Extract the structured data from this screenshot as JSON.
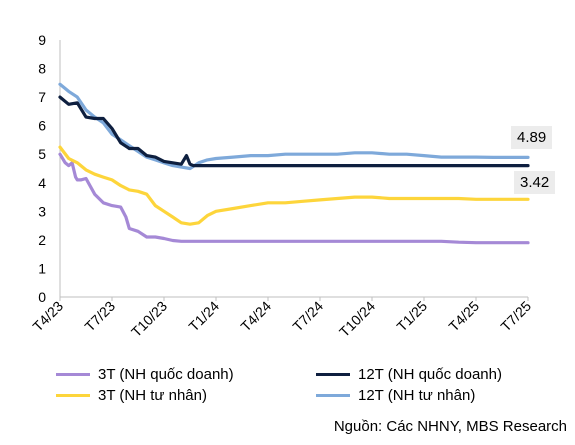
{
  "chart_data": {
    "type": "line",
    "ylim": [
      0,
      9
    ],
    "yticks": [
      0,
      1,
      2,
      3,
      4,
      5,
      6,
      7,
      8,
      9
    ],
    "x_tick_labels": [
      "T4/23",
      "T7/23",
      "T10/23",
      "T1/24",
      "T4/24",
      "T7/24",
      "T10/24",
      "T1/25",
      "T4/25",
      "T7/25"
    ],
    "series": [
      {
        "name": "3T (NH quốc doanh)",
        "color": "#a589d6",
        "x": [
          0,
          0.3,
          0.5,
          0.7,
          0.9,
          1.0,
          1.2,
          1.5,
          2.0,
          2.5,
          3.0,
          3.5,
          3.8,
          4.0,
          4.5,
          5.0,
          5.5,
          6.0,
          6.5,
          7.0,
          7.5,
          8.0,
          8.5,
          9.0,
          10,
          11,
          12,
          13,
          14,
          15,
          16,
          17,
          18,
          19,
          20,
          21,
          22,
          23,
          24,
          25,
          26,
          27
        ],
        "y": [
          5.0,
          4.7,
          4.6,
          4.7,
          4.2,
          4.1,
          4.1,
          4.15,
          3.6,
          3.3,
          3.2,
          3.15,
          2.8,
          2.4,
          2.3,
          2.1,
          2.1,
          2.05,
          1.98,
          1.95,
          1.95,
          1.95,
          1.95,
          1.95,
          1.95,
          1.95,
          1.95,
          1.95,
          1.95,
          1.95,
          1.95,
          1.95,
          1.95,
          1.95,
          1.95,
          1.95,
          1.95,
          1.92,
          1.9,
          1.9,
          1.9,
          1.9
        ]
      },
      {
        "name": "12T (NH quốc doanh)",
        "color": "#0e1f3f",
        "x": [
          0,
          0.5,
          1.0,
          1.5,
          2.0,
          2.5,
          3.0,
          3.5,
          4.0,
          4.5,
          5.0,
          5.5,
          6.0,
          6.5,
          7.0,
          7.3,
          7.5,
          7.7,
          8.0,
          9.0,
          10,
          11,
          12,
          13,
          14,
          15,
          16,
          17,
          18,
          19,
          20,
          21,
          22,
          23,
          24,
          25,
          26,
          27
        ],
        "y": [
          7.0,
          6.75,
          6.8,
          6.3,
          6.25,
          6.25,
          5.9,
          5.4,
          5.2,
          5.2,
          4.95,
          4.9,
          4.75,
          4.7,
          4.65,
          4.95,
          4.65,
          4.6,
          4.6,
          4.6,
          4.6,
          4.6,
          4.6,
          4.6,
          4.6,
          4.6,
          4.6,
          4.6,
          4.6,
          4.6,
          4.6,
          4.6,
          4.6,
          4.6,
          4.6,
          4.6,
          4.6,
          4.6
        ]
      },
      {
        "name": "3T (NH tư nhân)",
        "color": "#fdd53b",
        "x": [
          0,
          0.5,
          1.0,
          1.5,
          2.0,
          2.5,
          3.0,
          3.5,
          4.0,
          4.5,
          5.0,
          5.5,
          6.0,
          6.5,
          7.0,
          7.5,
          8.0,
          8.5,
          9.0,
          10,
          11,
          12,
          13,
          14,
          15,
          16,
          17,
          18,
          19,
          20,
          21,
          22,
          23,
          24,
          25,
          26,
          27
        ],
        "y": [
          5.25,
          4.85,
          4.7,
          4.45,
          4.3,
          4.2,
          4.1,
          3.9,
          3.75,
          3.7,
          3.6,
          3.2,
          3.0,
          2.8,
          2.6,
          2.55,
          2.6,
          2.85,
          3.0,
          3.1,
          3.2,
          3.3,
          3.3,
          3.35,
          3.4,
          3.45,
          3.5,
          3.5,
          3.45,
          3.45,
          3.45,
          3.45,
          3.45,
          3.42,
          3.42,
          3.42,
          3.42
        ]
      },
      {
        "name": "12T (NH tư nhân)",
        "color": "#7ea9da",
        "x": [
          0,
          0.5,
          1.0,
          1.5,
          2.0,
          2.5,
          3.0,
          3.5,
          4.0,
          4.5,
          5.0,
          5.5,
          6.0,
          6.5,
          7.0,
          7.5,
          8.0,
          8.5,
          9.0,
          10,
          11,
          12,
          13,
          14,
          15,
          16,
          17,
          18,
          19,
          20,
          21,
          22,
          23,
          24,
          25,
          26,
          27
        ],
        "y": [
          7.45,
          7.2,
          7.0,
          6.55,
          6.3,
          6.1,
          5.7,
          5.5,
          5.3,
          5.1,
          4.9,
          4.8,
          4.7,
          4.6,
          4.55,
          4.5,
          4.7,
          4.8,
          4.85,
          4.9,
          4.95,
          4.95,
          5.0,
          5.0,
          5.0,
          5.0,
          5.05,
          5.05,
          5.0,
          5.0,
          4.95,
          4.9,
          4.9,
          4.9,
          4.89,
          4.89,
          4.89
        ]
      }
    ],
    "annotations": [
      "4.89",
      "3.42"
    ],
    "source": "Nguồn: Các NHNY, MBS Research",
    "grid": false,
    "legend_position": "bottom"
  }
}
